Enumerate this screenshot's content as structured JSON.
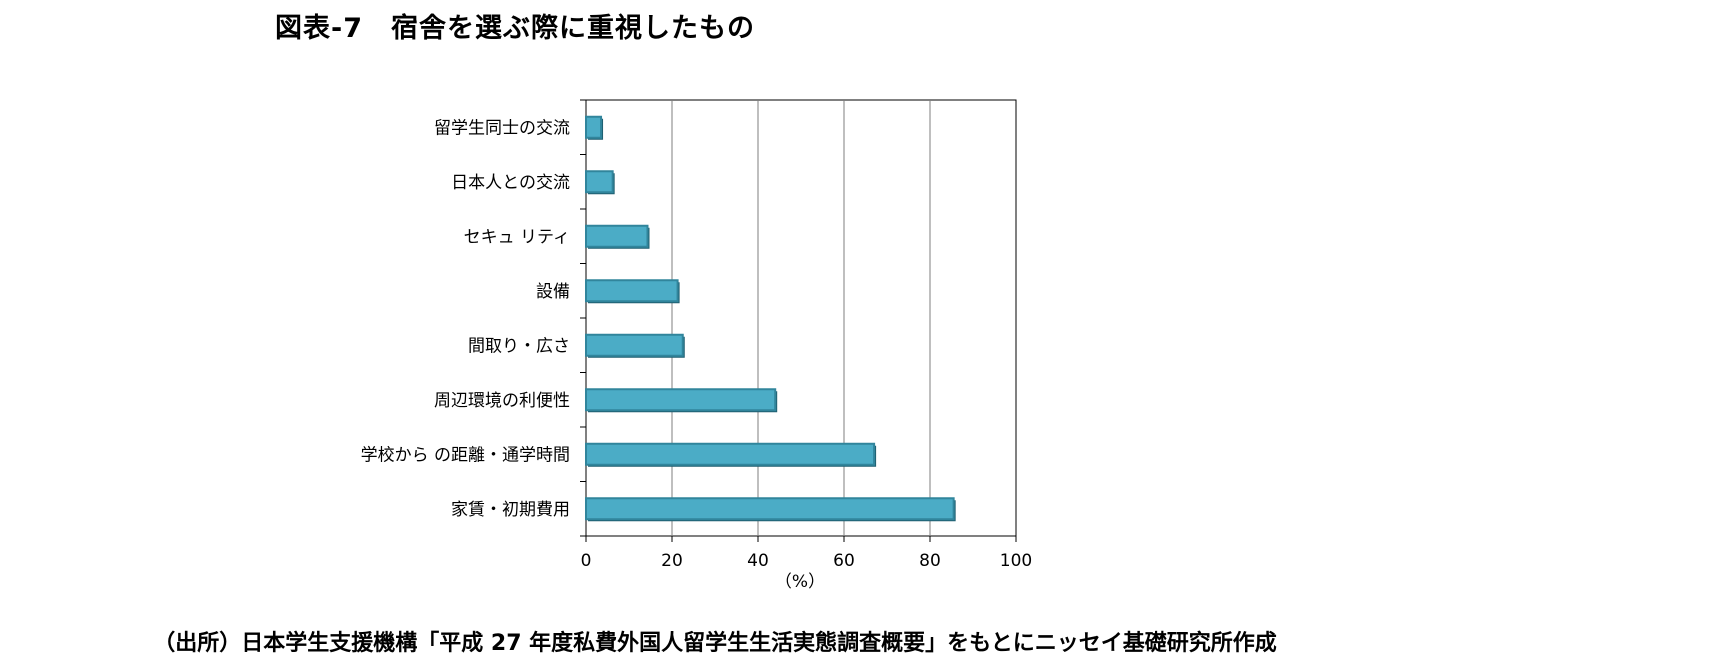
{
  "title": "図表-7　宿舎を選ぶ際に重視したもの",
  "source": "（出所）日本学生支援機構「平成 27 年度私費外国人留学生生活実態調査概要」をもとにニッセイ基礎研究所作成",
  "colors": {
    "bar_fill": "#4bacc6",
    "bar_stroke": "#31859c",
    "bar_shadow": "#1f5f70",
    "gridline": "#7f7f7f",
    "axis": "#000000"
  },
  "chart_data": {
    "type": "bar",
    "orientation": "horizontal",
    "categories": [
      "留学生同士の交流",
      "日本人との交流",
      "セキュ リティ",
      "設備",
      "間取り・広さ",
      "周辺環境の利便性",
      "学校から の距離・通学時間",
      "家賃・初期費用"
    ],
    "values": [
      3.5,
      6.2,
      14.3,
      21.3,
      22.5,
      44.0,
      67.0,
      85.5
    ],
    "xlabel": "（%）",
    "ylabel": "",
    "xlim": [
      0,
      100
    ],
    "xticks": [
      0,
      20,
      40,
      60,
      80,
      100
    ],
    "grid": true,
    "legend": "none"
  }
}
